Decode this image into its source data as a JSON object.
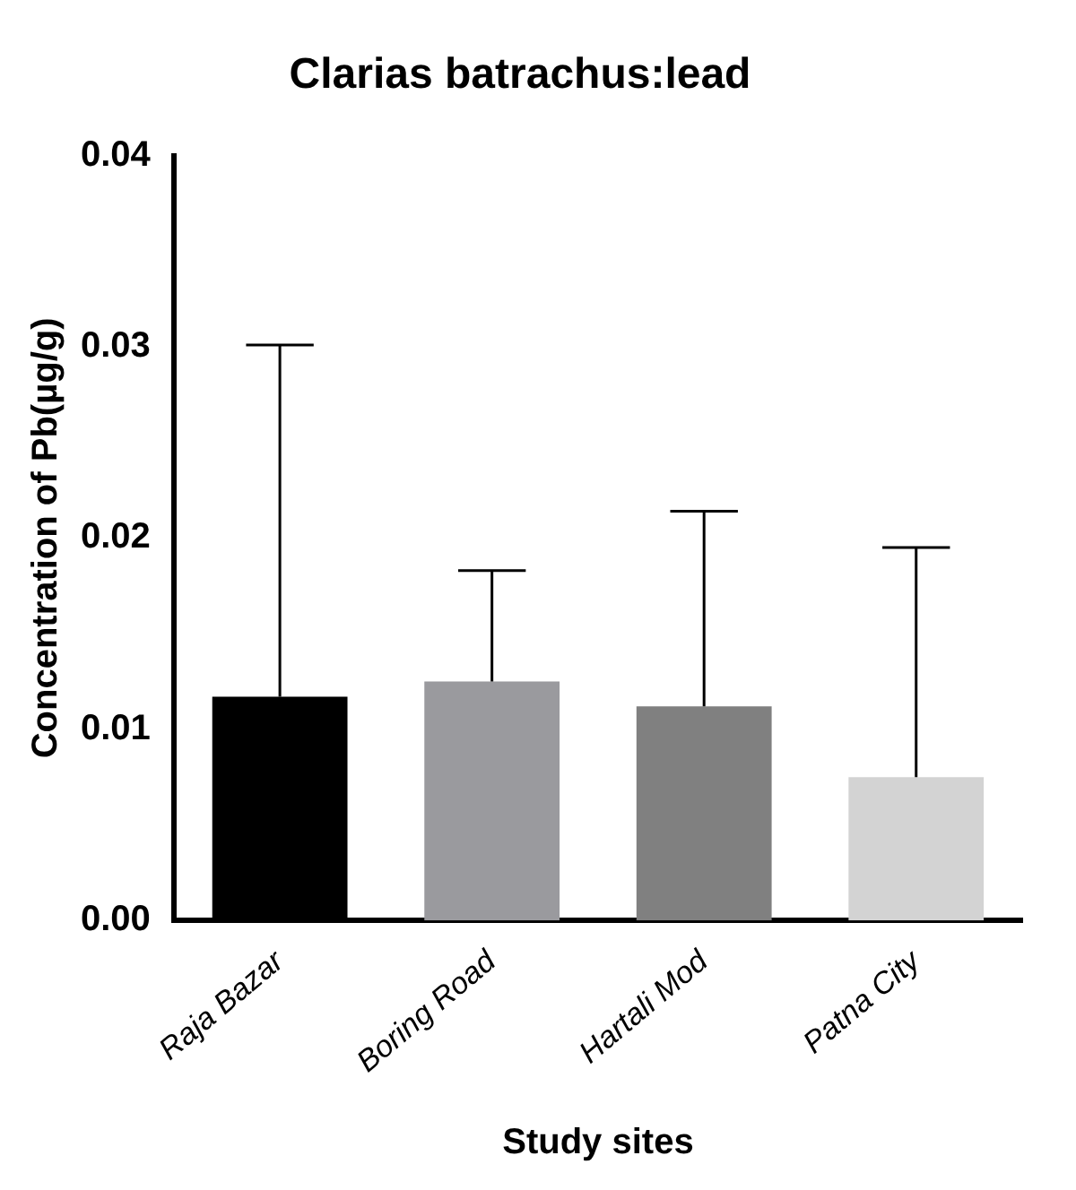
{
  "chart_data": {
    "type": "bar",
    "title": "Clarias batrachus:lead",
    "xlabel": "Study sites",
    "ylabel": "Concentration of Pb(µg/g)",
    "categories": [
      "Raja Bazar",
      "Boring Road",
      "Hartali Mod",
      "Patna City"
    ],
    "values": [
      0.0117,
      0.0125,
      0.0112,
      0.0075
    ],
    "colors": [
      "#000000",
      "#9a9a9e",
      "#808080",
      "#d3d3d3"
    ],
    "errors": [
      [
        0.0117,
        0.0301
      ],
      [
        0.0125,
        0.0183
      ],
      [
        0.0112,
        0.0214
      ],
      [
        0.0075,
        0.0195
      ]
    ],
    "ylim": [
      0,
      0.04
    ],
    "yticks": [
      {
        "value": 0,
        "label": "0.00"
      },
      {
        "value": 0.01,
        "label": "0.01"
      },
      {
        "value": 0.02,
        "label": "0.02"
      },
      {
        "value": 0.03,
        "label": "0.03"
      },
      {
        "value": 0.04,
        "label": "0.04"
      }
    ],
    "grid": false,
    "legend": false
  }
}
